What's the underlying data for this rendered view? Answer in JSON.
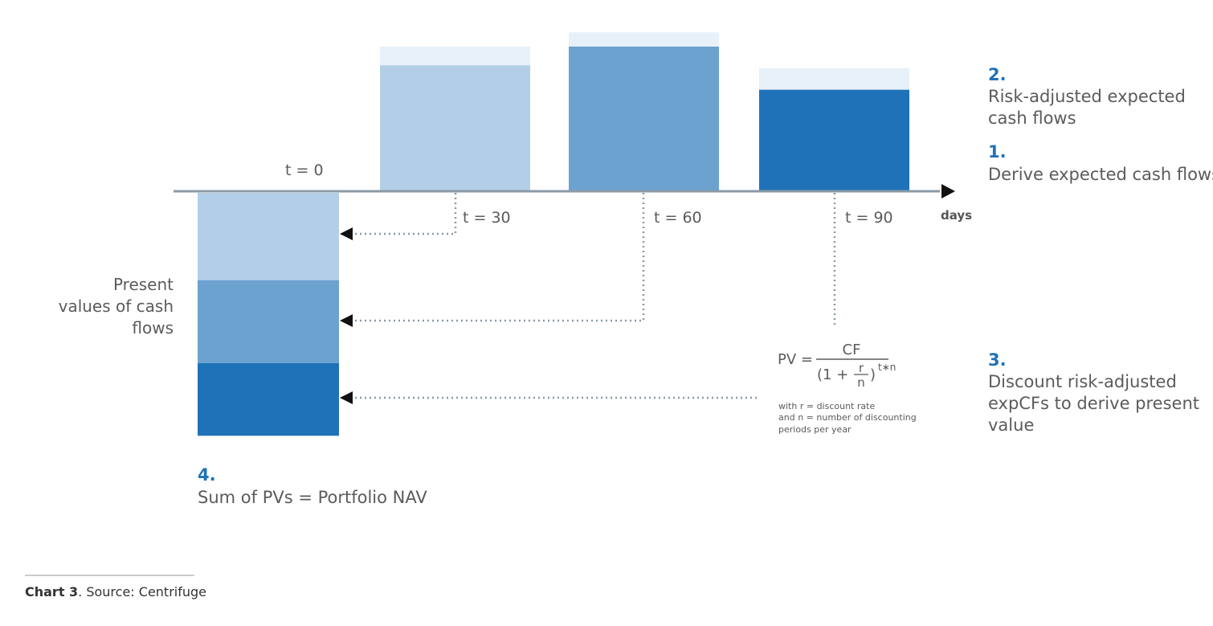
{
  "axis": {
    "unit_label": "days",
    "time_labels": [
      "t = 0",
      "t = 30",
      "t = 60",
      "t = 90"
    ]
  },
  "cash_flows": [
    {
      "t": 30,
      "expected": 1.0,
      "risk_adjusted": 0.87,
      "color": "#b3cfe7"
    },
    {
      "t": 60,
      "expected": 1.1,
      "risk_adjusted": 1.0,
      "color": "#6ca2d0"
    },
    {
      "t": 90,
      "expected": 0.85,
      "risk_adjusted": 0.7,
      "color": "#1f72b8"
    }
  ],
  "present_values": {
    "label_lines": [
      "Present",
      "values of cash",
      "flows"
    ],
    "segments": [
      {
        "t": 30,
        "value": 0.6,
        "color": "#b3cfe7"
      },
      {
        "t": 60,
        "value": 0.57,
        "color": "#6ca2d0"
      },
      {
        "t": 90,
        "value": 0.5,
        "color": "#1f72b8"
      }
    ]
  },
  "colors": {
    "uncertainty": "#e8f0f9",
    "axis": "#8a9aa6",
    "accent": "#1f72b8",
    "dotted": "#8a9aa6"
  },
  "steps": [
    {
      "number": "2.",
      "lines": [
        "Risk-adjusted expected",
        "cash flows"
      ]
    },
    {
      "number": "1.",
      "lines": [
        "Derive expected cash flows"
      ]
    },
    {
      "number": "3.",
      "lines": [
        "Discount risk-adjusted",
        "expCFs to derive present",
        "value"
      ]
    },
    {
      "number": "4.",
      "lines": [
        "Sum of PVs = Portfolio NAV"
      ]
    }
  ],
  "formula": {
    "lhs": "PV =",
    "numerator": "CF",
    "denominator_open": "(1 +",
    "frac_top": "r",
    "frac_bottom": "n",
    "denominator_close": ")",
    "exponent": "t∗n",
    "notes": [
      "with r = discount rate",
      "and n = number of discounting",
      "periods per year"
    ]
  },
  "caption": {
    "bold": "Chart 3",
    "text": ". Source: Centrifuge"
  }
}
